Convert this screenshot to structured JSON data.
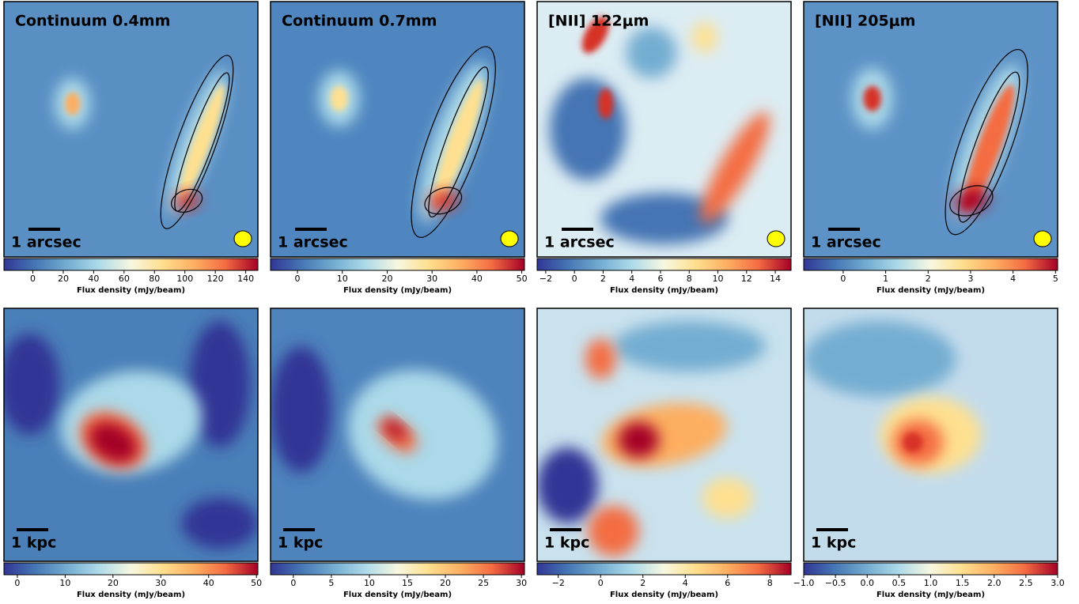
{
  "chart_data": [
    {
      "type": "colormap",
      "title": "Continuum 0.4mm",
      "scale_label": "1 arcsec",
      "xlabel": "Flux density (mJy/beam)",
      "xlim": [
        -19,
        148
      ],
      "xticks": [
        0,
        20,
        40,
        60,
        80,
        100,
        120,
        140
      ]
    },
    {
      "type": "colormap",
      "title": "Continuum 0.7mm",
      "scale_label": "1 arcsec",
      "xlabel": "Flux density (mJy/beam)",
      "xlim": [
        -6,
        50.6
      ],
      "xticks": [
        0,
        10,
        20,
        30,
        40,
        50
      ]
    },
    {
      "type": "colormap",
      "title": "[NII] 122μm",
      "scale_label": "1 arcsec",
      "xlabel": "Flux density (mJy/beam)",
      "xlim": [
        -2.6,
        15.1
      ],
      "xticks": [
        {
          "value": -2,
          "label": "−2"
        },
        0,
        2,
        4,
        6,
        8,
        10,
        12,
        14
      ]
    },
    {
      "type": "colormap",
      "title": "[NII] 205μm",
      "scale_label": "1 arcsec",
      "xlabel": "Flux density (mJy/beam)",
      "xlim": [
        -0.93,
        5.05
      ],
      "xticks": [
        0,
        1,
        2,
        3,
        4,
        5
      ]
    },
    {
      "type": "colormap",
      "scale_label": "1 kpc",
      "xlabel": "Flux density (mJy/beam)",
      "xlim": [
        -2.8,
        50.3
      ],
      "xticks": [
        0,
        10,
        20,
        30,
        40,
        50
      ]
    },
    {
      "type": "colormap",
      "scale_label": "1 kpc",
      "xlabel": "Flux density (mJy/beam)",
      "xlim": [
        -3,
        30.4
      ],
      "xticks": [
        0,
        5,
        10,
        15,
        20,
        25,
        30
      ]
    },
    {
      "type": "colormap",
      "scale_label": "1 kpc",
      "xlabel": "Flux density (mJy/beam)",
      "xlim": [
        -3,
        9
      ],
      "xticks": [
        {
          "value": -2,
          "label": "−2"
        },
        0,
        2,
        4,
        6,
        8
      ]
    },
    {
      "type": "colormap",
      "scale_label": "1 kpc",
      "xlabel": "Flux density (mJy/beam)",
      "xlim": [
        -1,
        3
      ],
      "xticks": [
        {
          "value": -1,
          "label": "−1.0"
        },
        {
          "value": -0.5,
          "label": "−0.5"
        },
        {
          "value": 0,
          "label": "0.0"
        },
        {
          "value": 0.5,
          "label": "0.5"
        },
        {
          "value": 1,
          "label": "1.0"
        },
        {
          "value": 1.5,
          "label": "1.5"
        },
        {
          "value": 2,
          "label": "2.0"
        },
        {
          "value": 2.5,
          "label": "2.5"
        },
        {
          "value": 3,
          "label": "3.0"
        }
      ]
    }
  ]
}
